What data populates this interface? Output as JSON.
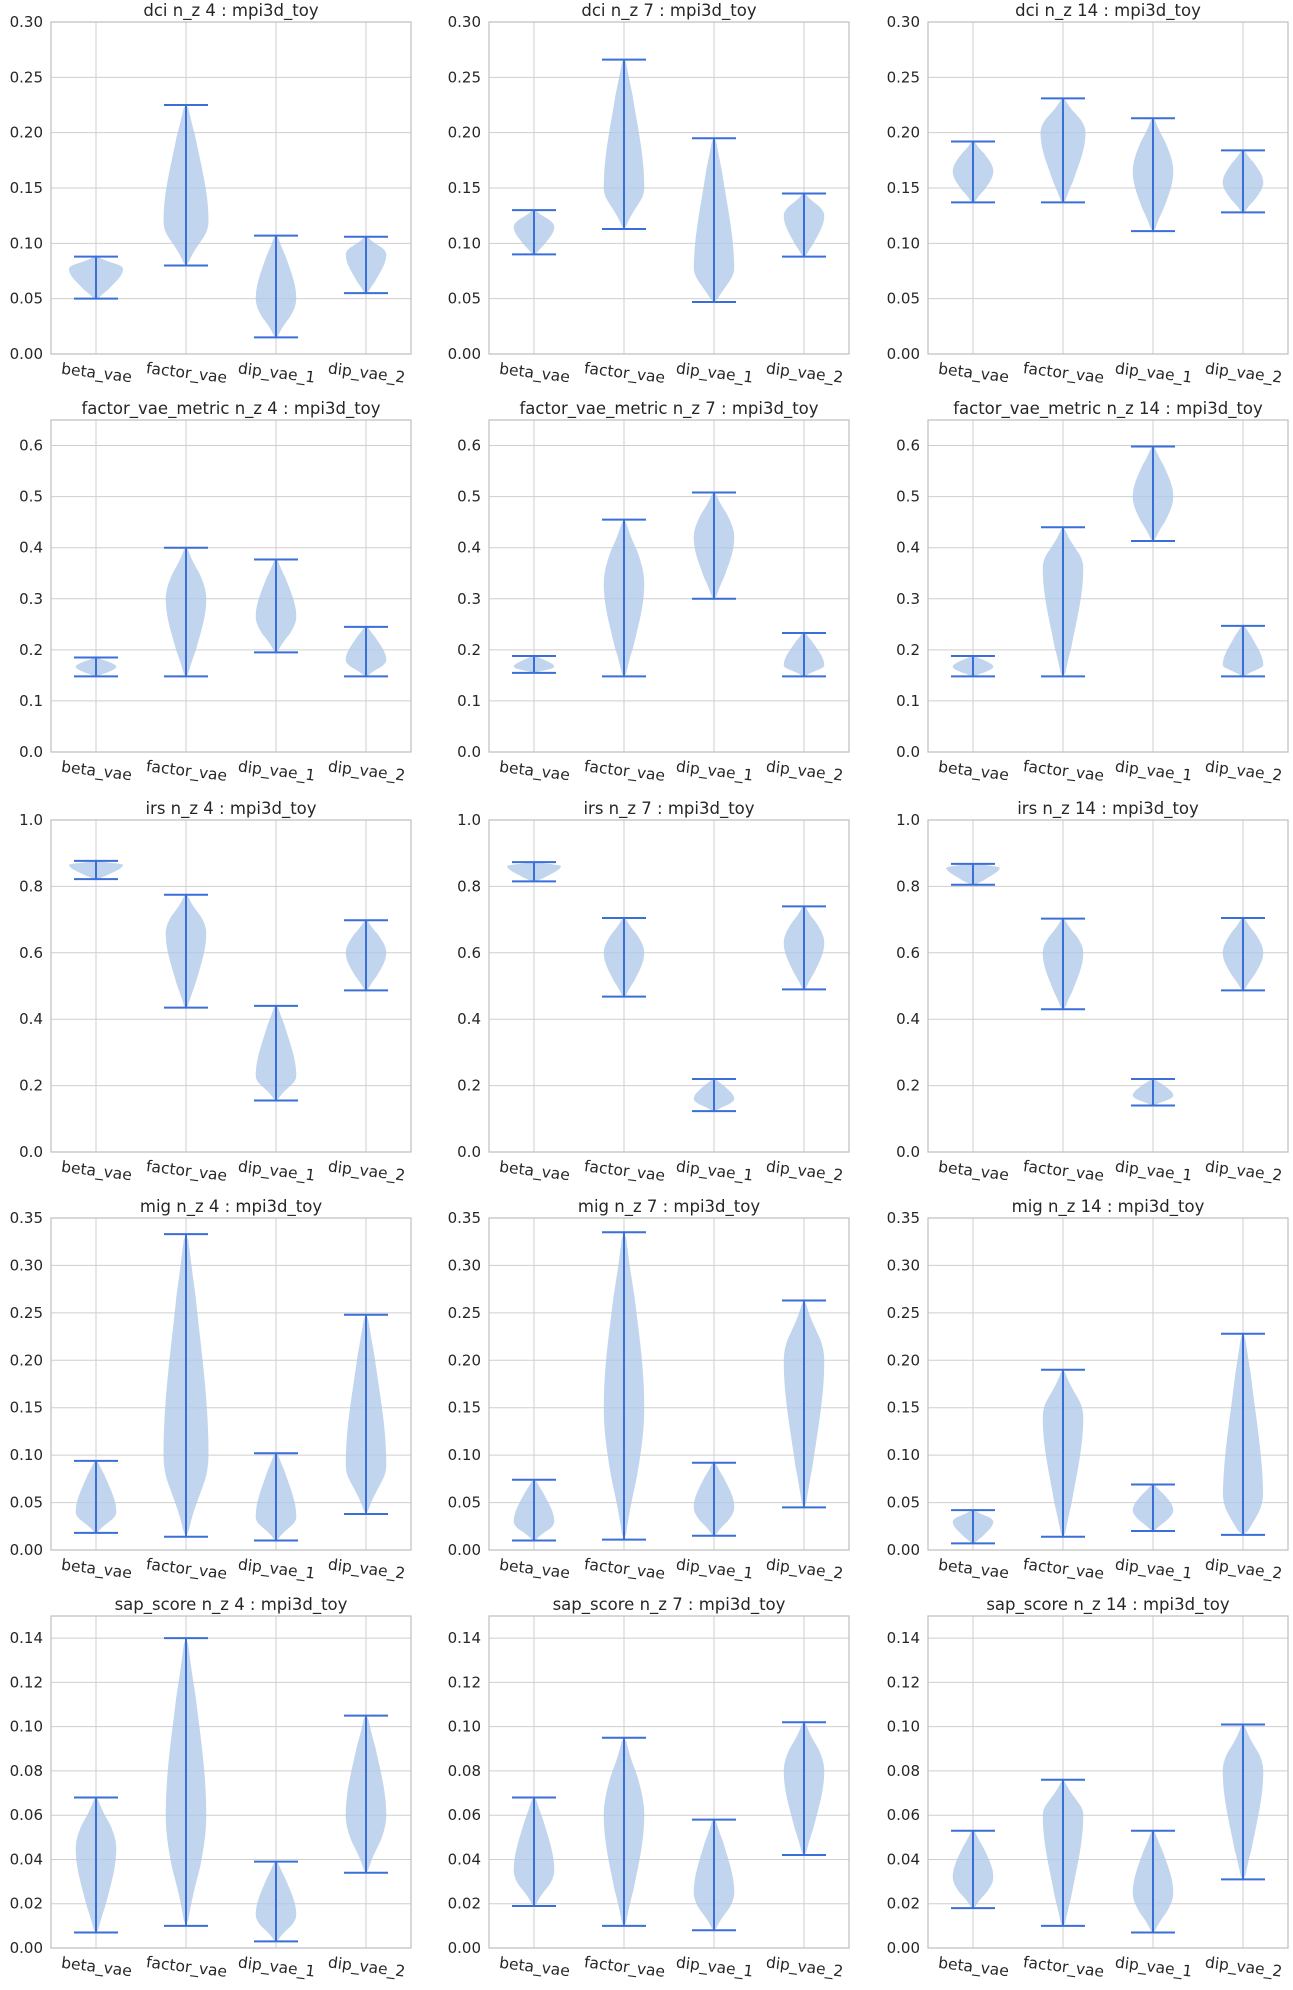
{
  "figure": {
    "categories": [
      "beta_vae",
      "factor_vae",
      "dip_vae_1",
      "dip_vae_2"
    ],
    "colors": {
      "violin_fill": "#aec7e8",
      "violin_stroke": "#3a6fd8",
      "grid": "#cfcfcf",
      "axes_edge": "#bfbfbf",
      "background": "#ffffff"
    }
  },
  "chart_data": [
    {
      "type": "violin",
      "title": "dci n_z 4 : mpi3d_toy",
      "ylim": [
        0,
        0.3
      ],
      "yticks": [
        0.0,
        0.05,
        0.1,
        0.15,
        0.2,
        0.25,
        0.3
      ],
      "ytick_labels": [
        "0.00",
        "0.05",
        "0.10",
        "0.15",
        "0.20",
        "0.25",
        "0.30"
      ],
      "grid": true,
      "series": [
        {
          "category": "beta_vae",
          "min": 0.05,
          "max": 0.088,
          "mode": 0.077,
          "width": 0.6
        },
        {
          "category": "factor_vae",
          "min": 0.08,
          "max": 0.225,
          "mode": 0.12,
          "width": 0.5
        },
        {
          "category": "dip_vae_1",
          "min": 0.015,
          "max": 0.107,
          "mode": 0.05,
          "width": 0.45
        },
        {
          "category": "dip_vae_2",
          "min": 0.055,
          "max": 0.106,
          "mode": 0.09,
          "width": 0.45
        }
      ]
    },
    {
      "type": "violin",
      "title": "dci n_z 7 : mpi3d_toy",
      "ylim": [
        0,
        0.3
      ],
      "yticks": [
        0.0,
        0.05,
        0.1,
        0.15,
        0.2,
        0.25,
        0.3
      ],
      "ytick_labels": [
        "0.00",
        "0.05",
        "0.10",
        "0.15",
        "0.20",
        "0.25",
        "0.30"
      ],
      "grid": true,
      "series": [
        {
          "category": "beta_vae",
          "min": 0.09,
          "max": 0.13,
          "mode": 0.115,
          "width": 0.45
        },
        {
          "category": "factor_vae",
          "min": 0.113,
          "max": 0.266,
          "mode": 0.15,
          "width": 0.45
        },
        {
          "category": "dip_vae_1",
          "min": 0.047,
          "max": 0.195,
          "mode": 0.075,
          "width": 0.45
        },
        {
          "category": "dip_vae_2",
          "min": 0.088,
          "max": 0.145,
          "mode": 0.125,
          "width": 0.45
        }
      ]
    },
    {
      "type": "violin",
      "title": "dci n_z 14 : mpi3d_toy",
      "ylim": [
        0,
        0.3
      ],
      "yticks": [
        0.0,
        0.05,
        0.1,
        0.15,
        0.2,
        0.25,
        0.3
      ],
      "ytick_labels": [
        "0.00",
        "0.05",
        "0.10",
        "0.15",
        "0.20",
        "0.25",
        "0.30"
      ],
      "grid": true,
      "series": [
        {
          "category": "beta_vae",
          "min": 0.137,
          "max": 0.192,
          "mode": 0.165,
          "width": 0.45
        },
        {
          "category": "factor_vae",
          "min": 0.137,
          "max": 0.231,
          "mode": 0.2,
          "width": 0.5
        },
        {
          "category": "dip_vae_1",
          "min": 0.111,
          "max": 0.213,
          "mode": 0.165,
          "width": 0.45
        },
        {
          "category": "dip_vae_2",
          "min": 0.128,
          "max": 0.184,
          "mode": 0.155,
          "width": 0.45
        }
      ]
    },
    {
      "type": "violin",
      "title": "factor_vae_metric n_z 4 : mpi3d_toy",
      "ylim": [
        0,
        0.65
      ],
      "yticks": [
        0.0,
        0.1,
        0.2,
        0.3,
        0.4,
        0.5,
        0.6
      ],
      "ytick_labels": [
        "0.0",
        "0.1",
        "0.2",
        "0.3",
        "0.4",
        "0.5",
        "0.6"
      ],
      "grid": true,
      "series": [
        {
          "category": "beta_vae",
          "min": 0.148,
          "max": 0.185,
          "mode": 0.167,
          "width": 0.45
        },
        {
          "category": "factor_vae",
          "min": 0.148,
          "max": 0.4,
          "mode": 0.3,
          "width": 0.45
        },
        {
          "category": "dip_vae_1",
          "min": 0.195,
          "max": 0.377,
          "mode": 0.265,
          "width": 0.45
        },
        {
          "category": "dip_vae_2",
          "min": 0.148,
          "max": 0.245,
          "mode": 0.18,
          "width": 0.45
        }
      ]
    },
    {
      "type": "violin",
      "title": "factor_vae_metric n_z 7 : mpi3d_toy",
      "ylim": [
        0,
        0.65
      ],
      "yticks": [
        0.0,
        0.1,
        0.2,
        0.3,
        0.4,
        0.5,
        0.6
      ],
      "ytick_labels": [
        "0.0",
        "0.1",
        "0.2",
        "0.3",
        "0.4",
        "0.5",
        "0.6"
      ],
      "grid": true,
      "series": [
        {
          "category": "beta_vae",
          "min": 0.155,
          "max": 0.188,
          "mode": 0.167,
          "width": 0.45
        },
        {
          "category": "factor_vae",
          "min": 0.148,
          "max": 0.455,
          "mode": 0.33,
          "width": 0.45
        },
        {
          "category": "dip_vae_1",
          "min": 0.3,
          "max": 0.508,
          "mode": 0.42,
          "width": 0.45
        },
        {
          "category": "dip_vae_2",
          "min": 0.148,
          "max": 0.233,
          "mode": 0.17,
          "width": 0.45
        }
      ]
    },
    {
      "type": "violin",
      "title": "factor_vae_metric n_z 14 : mpi3d_toy",
      "ylim": [
        0,
        0.65
      ],
      "yticks": [
        0.0,
        0.1,
        0.2,
        0.3,
        0.4,
        0.5,
        0.6
      ],
      "ytick_labels": [
        "0.0",
        "0.1",
        "0.2",
        "0.3",
        "0.4",
        "0.5",
        "0.6"
      ],
      "grid": true,
      "series": [
        {
          "category": "beta_vae",
          "min": 0.148,
          "max": 0.188,
          "mode": 0.167,
          "width": 0.45
        },
        {
          "category": "factor_vae",
          "min": 0.148,
          "max": 0.44,
          "mode": 0.36,
          "width": 0.45
        },
        {
          "category": "dip_vae_1",
          "min": 0.413,
          "max": 0.598,
          "mode": 0.5,
          "width": 0.45
        },
        {
          "category": "dip_vae_2",
          "min": 0.148,
          "max": 0.247,
          "mode": 0.17,
          "width": 0.45
        }
      ]
    },
    {
      "type": "violin",
      "title": "irs n_z 4 : mpi3d_toy",
      "ylim": [
        0,
        1.0
      ],
      "yticks": [
        0.0,
        0.2,
        0.4,
        0.6,
        0.8,
        1.0
      ],
      "ytick_labels": [
        "0.0",
        "0.2",
        "0.4",
        "0.6",
        "0.8",
        "1.0"
      ],
      "grid": true,
      "series": [
        {
          "category": "beta_vae",
          "min": 0.822,
          "max": 0.877,
          "mode": 0.865,
          "width": 0.6
        },
        {
          "category": "factor_vae",
          "min": 0.435,
          "max": 0.775,
          "mode": 0.66,
          "width": 0.45
        },
        {
          "category": "dip_vae_1",
          "min": 0.155,
          "max": 0.44,
          "mode": 0.23,
          "width": 0.45
        },
        {
          "category": "dip_vae_2",
          "min": 0.487,
          "max": 0.698,
          "mode": 0.6,
          "width": 0.45
        }
      ]
    },
    {
      "type": "violin",
      "title": "irs n_z 7 : mpi3d_toy",
      "ylim": [
        0,
        1.0
      ],
      "yticks": [
        0.0,
        0.2,
        0.4,
        0.6,
        0.8,
        1.0
      ],
      "ytick_labels": [
        "0.0",
        "0.2",
        "0.4",
        "0.6",
        "0.8",
        "1.0"
      ],
      "grid": true,
      "series": [
        {
          "category": "beta_vae",
          "min": 0.815,
          "max": 0.873,
          "mode": 0.862,
          "width": 0.6
        },
        {
          "category": "factor_vae",
          "min": 0.468,
          "max": 0.705,
          "mode": 0.6,
          "width": 0.45
        },
        {
          "category": "dip_vae_1",
          "min": 0.123,
          "max": 0.22,
          "mode": 0.16,
          "width": 0.45
        },
        {
          "category": "dip_vae_2",
          "min": 0.49,
          "max": 0.74,
          "mode": 0.63,
          "width": 0.45
        }
      ]
    },
    {
      "type": "violin",
      "title": "irs n_z 14 : mpi3d_toy",
      "ylim": [
        0,
        1.0
      ],
      "yticks": [
        0.0,
        0.2,
        0.4,
        0.6,
        0.8,
        1.0
      ],
      "ytick_labels": [
        "0.0",
        "0.2",
        "0.4",
        "0.6",
        "0.8",
        "1.0"
      ],
      "grid": true,
      "series": [
        {
          "category": "beta_vae",
          "min": 0.805,
          "max": 0.868,
          "mode": 0.858,
          "width": 0.6
        },
        {
          "category": "factor_vae",
          "min": 0.43,
          "max": 0.703,
          "mode": 0.6,
          "width": 0.45
        },
        {
          "category": "dip_vae_1",
          "min": 0.14,
          "max": 0.22,
          "mode": 0.17,
          "width": 0.45
        },
        {
          "category": "dip_vae_2",
          "min": 0.487,
          "max": 0.705,
          "mode": 0.6,
          "width": 0.45
        }
      ]
    },
    {
      "type": "violin",
      "title": "mig n_z 4 : mpi3d_toy",
      "ylim": [
        0,
        0.35
      ],
      "yticks": [
        0.0,
        0.05,
        0.1,
        0.15,
        0.2,
        0.25,
        0.3,
        0.35
      ],
      "ytick_labels": [
        "0.00",
        "0.05",
        "0.10",
        "0.15",
        "0.20",
        "0.25",
        "0.30",
        "0.35"
      ],
      "grid": true,
      "series": [
        {
          "category": "beta_vae",
          "min": 0.018,
          "max": 0.094,
          "mode": 0.04,
          "width": 0.45
        },
        {
          "category": "factor_vae",
          "min": 0.014,
          "max": 0.333,
          "mode": 0.1,
          "width": 0.5
        },
        {
          "category": "dip_vae_1",
          "min": 0.01,
          "max": 0.102,
          "mode": 0.035,
          "width": 0.45
        },
        {
          "category": "dip_vae_2",
          "min": 0.038,
          "max": 0.248,
          "mode": 0.09,
          "width": 0.45
        }
      ]
    },
    {
      "type": "violin",
      "title": "mig n_z 7 : mpi3d_toy",
      "ylim": [
        0,
        0.35
      ],
      "yticks": [
        0.0,
        0.05,
        0.1,
        0.15,
        0.2,
        0.25,
        0.3,
        0.35
      ],
      "ytick_labels": [
        "0.00",
        "0.05",
        "0.10",
        "0.15",
        "0.20",
        "0.25",
        "0.30",
        "0.35"
      ],
      "grid": true,
      "series": [
        {
          "category": "beta_vae",
          "min": 0.01,
          "max": 0.074,
          "mode": 0.03,
          "width": 0.45
        },
        {
          "category": "factor_vae",
          "min": 0.011,
          "max": 0.335,
          "mode": 0.15,
          "width": 0.45
        },
        {
          "category": "dip_vae_1",
          "min": 0.015,
          "max": 0.092,
          "mode": 0.045,
          "width": 0.45
        },
        {
          "category": "dip_vae_2",
          "min": 0.045,
          "max": 0.263,
          "mode": 0.2,
          "width": 0.45
        }
      ]
    },
    {
      "type": "violin",
      "title": "mig n_z 14 : mpi3d_toy",
      "ylim": [
        0,
        0.35
      ],
      "yticks": [
        0.0,
        0.05,
        0.1,
        0.15,
        0.2,
        0.25,
        0.3,
        0.35
      ],
      "ytick_labels": [
        "0.00",
        "0.05",
        "0.10",
        "0.15",
        "0.20",
        "0.25",
        "0.30",
        "0.35"
      ],
      "grid": true,
      "series": [
        {
          "category": "beta_vae",
          "min": 0.007,
          "max": 0.042,
          "mode": 0.03,
          "width": 0.45
        },
        {
          "category": "factor_vae",
          "min": 0.014,
          "max": 0.19,
          "mode": 0.14,
          "width": 0.45
        },
        {
          "category": "dip_vae_1",
          "min": 0.02,
          "max": 0.069,
          "mode": 0.042,
          "width": 0.45
        },
        {
          "category": "dip_vae_2",
          "min": 0.016,
          "max": 0.228,
          "mode": 0.05,
          "width": 0.45
        }
      ]
    },
    {
      "type": "violin",
      "title": "sap_score n_z 4 : mpi3d_toy",
      "ylim": [
        0,
        0.15
      ],
      "yticks": [
        0.0,
        0.02,
        0.04,
        0.06,
        0.08,
        0.1,
        0.12,
        0.14
      ],
      "ytick_labels": [
        "0.00",
        "0.02",
        "0.04",
        "0.06",
        "0.08",
        "0.10",
        "0.12",
        "0.14"
      ],
      "grid": true,
      "series": [
        {
          "category": "beta_vae",
          "min": 0.007,
          "max": 0.068,
          "mode": 0.045,
          "width": 0.45
        },
        {
          "category": "factor_vae",
          "min": 0.01,
          "max": 0.14,
          "mode": 0.06,
          "width": 0.45
        },
        {
          "category": "dip_vae_1",
          "min": 0.003,
          "max": 0.039,
          "mode": 0.015,
          "width": 0.45
        },
        {
          "category": "dip_vae_2",
          "min": 0.034,
          "max": 0.105,
          "mode": 0.06,
          "width": 0.45
        }
      ]
    },
    {
      "type": "violin",
      "title": "sap_score n_z 7 : mpi3d_toy",
      "ylim": [
        0,
        0.15
      ],
      "yticks": [
        0.0,
        0.02,
        0.04,
        0.06,
        0.08,
        0.1,
        0.12,
        0.14
      ],
      "ytick_labels": [
        "0.00",
        "0.02",
        "0.04",
        "0.06",
        "0.08",
        "0.10",
        "0.12",
        "0.14"
      ],
      "grid": true,
      "series": [
        {
          "category": "beta_vae",
          "min": 0.019,
          "max": 0.068,
          "mode": 0.035,
          "width": 0.45
        },
        {
          "category": "factor_vae",
          "min": 0.01,
          "max": 0.095,
          "mode": 0.06,
          "width": 0.45
        },
        {
          "category": "dip_vae_1",
          "min": 0.008,
          "max": 0.058,
          "mode": 0.025,
          "width": 0.45
        },
        {
          "category": "dip_vae_2",
          "min": 0.042,
          "max": 0.102,
          "mode": 0.08,
          "width": 0.45
        }
      ]
    },
    {
      "type": "violin",
      "title": "sap_score n_z 14 : mpi3d_toy",
      "ylim": [
        0,
        0.15
      ],
      "yticks": [
        0.0,
        0.02,
        0.04,
        0.06,
        0.08,
        0.1,
        0.12,
        0.14
      ],
      "ytick_labels": [
        "0.00",
        "0.02",
        "0.04",
        "0.06",
        "0.08",
        "0.10",
        "0.12",
        "0.14"
      ],
      "grid": true,
      "series": [
        {
          "category": "beta_vae",
          "min": 0.018,
          "max": 0.053,
          "mode": 0.032,
          "width": 0.45
        },
        {
          "category": "factor_vae",
          "min": 0.01,
          "max": 0.076,
          "mode": 0.06,
          "width": 0.45
        },
        {
          "category": "dip_vae_1",
          "min": 0.007,
          "max": 0.053,
          "mode": 0.025,
          "width": 0.45
        },
        {
          "category": "dip_vae_2",
          "min": 0.031,
          "max": 0.101,
          "mode": 0.08,
          "width": 0.45
        }
      ]
    }
  ]
}
